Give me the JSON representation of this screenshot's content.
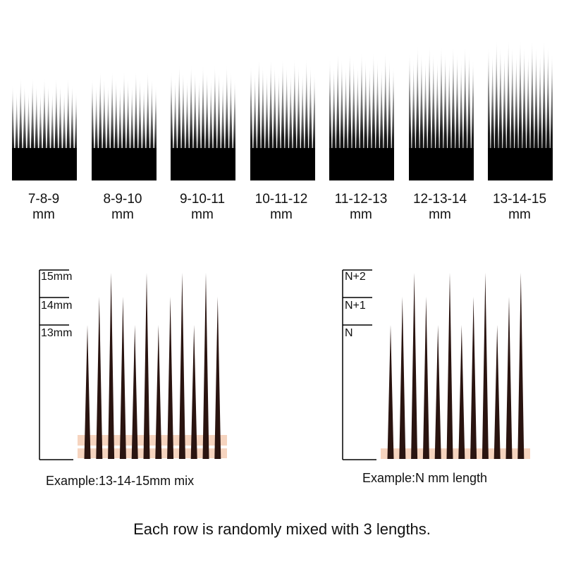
{
  "groups": [
    {
      "range": "7-8-9",
      "unit": "mm",
      "lengths": [
        7,
        8,
        9
      ]
    },
    {
      "range": "8-9-10",
      "unit": "mm",
      "lengths": [
        8,
        9,
        10
      ]
    },
    {
      "range": "9-10-11",
      "unit": "mm",
      "lengths": [
        9,
        10,
        11
      ]
    },
    {
      "range": "10-11-12",
      "unit": "mm",
      "lengths": [
        10,
        11,
        12
      ]
    },
    {
      "range": "11-12-13",
      "unit": "mm",
      "lengths": [
        11,
        12,
        13
      ]
    },
    {
      "range": "12-13-14",
      "unit": "mm",
      "lengths": [
        12,
        13,
        14
      ]
    },
    {
      "range": "13-14-15",
      "unit": "mm",
      "lengths": [
        13,
        14,
        15
      ]
    }
  ],
  "example_left": {
    "scale_labels": [
      "15mm",
      "14mm",
      "13mm"
    ],
    "caption": "Example:13-14-15mm mix"
  },
  "example_right": {
    "scale_labels": [
      "N+2",
      "N+1",
      "N"
    ],
    "caption": "Example:N mm  length"
  },
  "footer": "Each row is randomly mixed with 3 lengths.",
  "colors": {
    "lash_dark": "#000000",
    "lash_brown": "#2a1410",
    "tape": "#f6d4bf",
    "text": "#111111"
  }
}
